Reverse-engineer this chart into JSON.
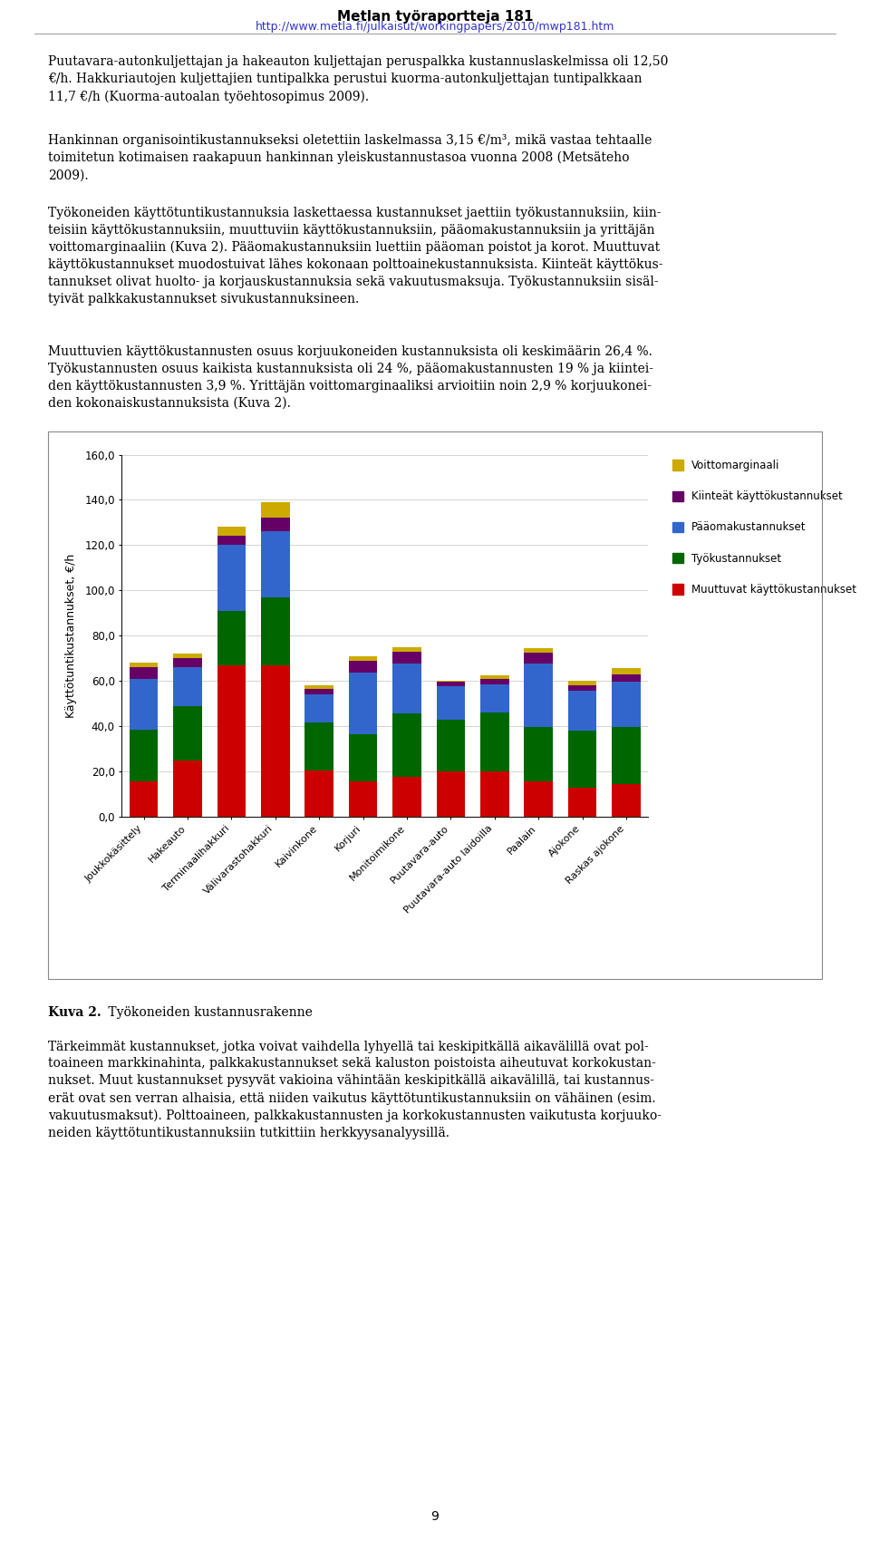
{
  "categories": [
    "Joukkokäsittely",
    "Hakeauto",
    "Terminaalihakkuri",
    "Välivarastohakkuri",
    "Kaivinkone",
    "Korjuri",
    "Monitoimikone",
    "Puutavara-auto",
    "Puutavara-auto laidoilla",
    "Paalain",
    "Ajokone",
    "Raskas ajokone"
  ],
  "series": {
    "Muuttuvat käyttökustannukset": [
      15.5,
      25.0,
      67.0,
      67.0,
      20.5,
      15.5,
      17.5,
      20.0,
      20.0,
      15.5,
      13.0,
      14.5
    ],
    "Työkustannukset": [
      23.0,
      24.0,
      24.0,
      30.0,
      21.0,
      21.0,
      28.0,
      23.0,
      26.0,
      24.0,
      25.0,
      25.0
    ],
    "Pääomakustannukset": [
      22.5,
      17.0,
      29.0,
      29.0,
      12.5,
      27.0,
      22.0,
      14.5,
      12.5,
      28.0,
      17.5,
      20.0
    ],
    "Kiinteät käyttökustannukset": [
      5.0,
      4.0,
      4.0,
      6.0,
      2.5,
      5.5,
      5.5,
      2.0,
      2.5,
      5.0,
      2.5,
      3.5
    ],
    "Voittomarginaali": [
      2.0,
      2.0,
      4.0,
      7.0,
      1.5,
      2.0,
      2.0,
      0.5,
      1.5,
      2.0,
      2.0,
      2.5
    ]
  },
  "colors": {
    "Muuttuvat käyttökustannukset": "#CC0000",
    "Työkustannukset": "#006600",
    "Pääomakustannukset": "#3366CC",
    "Kiinteät käyttökustannukset": "#660066",
    "Voittomarginaali": "#CCAA00"
  },
  "ylabel": "Käyttötuntikustannukset, €/h",
  "ylim": [
    0,
    160
  ],
  "yticks": [
    0,
    20,
    40,
    60,
    80,
    100,
    120,
    140,
    160
  ],
  "page_title": "Metlan työraportteja 181",
  "page_subtitle": "http://www.metla.fi/julkaisut/workingpapers/2010/mwp181.htm",
  "background_color": "#FFFFFF",
  "legend_order": [
    "Voittomarginaali",
    "Kiinteät käyttökustannukset",
    "Pääomakustannukset",
    "Työkustannukset",
    "Muuttuvat käyttökustannukset"
  ],
  "para1": "Puutavara-autonkuljettajan ja hakeauton kuljettajan peruspalkka kustannuslaskelmissa oli 12,50\n€/h. Hakkuriautojen kuljettajien tuntipalkka perustui kuorma-autonkuljettajan tuntipalkkaan\n11,7 €/h (Kuorma-autoalan työehtosopimus 2009).",
  "para2": "Hankinnan organisointikustannukseksi oletettiin laskelmassa 3,15 €/m³, mikä vastaa tehtaalle\ntoimitetun kotimaisen raakapuun hankinnan yleiskustannustasoa vuonna 2008 (Metsäteho\n2009).",
  "para3": "Työkoneiden käyttötuntikustannuksia laskettaessa kustannukset jaettiin työkustannuksiin, kiin-\nteisiin käyttökustannuksiin, muuttuviin käyttökustannuksiin, pääomakustannuksiin ja yrittäjän\nvoittomarginaaliin (Kuva 2). Pääomakustannuksiin luettiin pääoman poistot ja korot. Muuttuvat\nkäyttökustannukset muodostuivat lähes kokonaan polttoainekustannuksista. Kiinteät käyttökus-\ntannukset olivat huolto- ja korjauskustannuksia sekä vakuutusmaksuja. Työkustannuksiin sisäl-\ntyivät palkkakustannukset sivukustannuksineen.",
  "para4": "Muuttuvien käyttökustannusten osuus korjuukoneiden kustannuksista oli keskimäärin 26,4 %.\nTyökustannusten osuus kaikista kustannuksista oli 24 %, pääomakustannusten 19 % ja kiintei-\nden käyttökustannusten 3,9 %. Yrittäjän voittomarginaaliksi arvioitiin noin 2,9 % korjuukonei-\nden kokonaiskustannuksista (Kuva 2).",
  "caption_bold": "Kuva 2.",
  "caption_rest": " Työkoneiden kustannusrakenne",
  "para5": "Tärkeimmät kustannukset, jotka voivat vaihdella lyhyellä tai keskipitkällä aikavälillä ovat pol-\ntoaineen markkinahinta, palkkakustannukset sekä kaluston poistoista aiheutuvat korkokustan-\nnukset. Muut kustannukset pysyvät vakioina vähintään keskipitkällä aikavälillä, tai kustannus-\nerät ovat sen verran alhaisia, että niiden vaikutus käyttötuntikustannuksiin on vähäinen (esim.\nvakuutusmaksut). Polttoaineen, palkkakustannusten ja korkokustannusten vaikutusta korjuuko-\nneiden käyttötuntikustannuksiin tutkittiin herkkyysanalyysillä."
}
